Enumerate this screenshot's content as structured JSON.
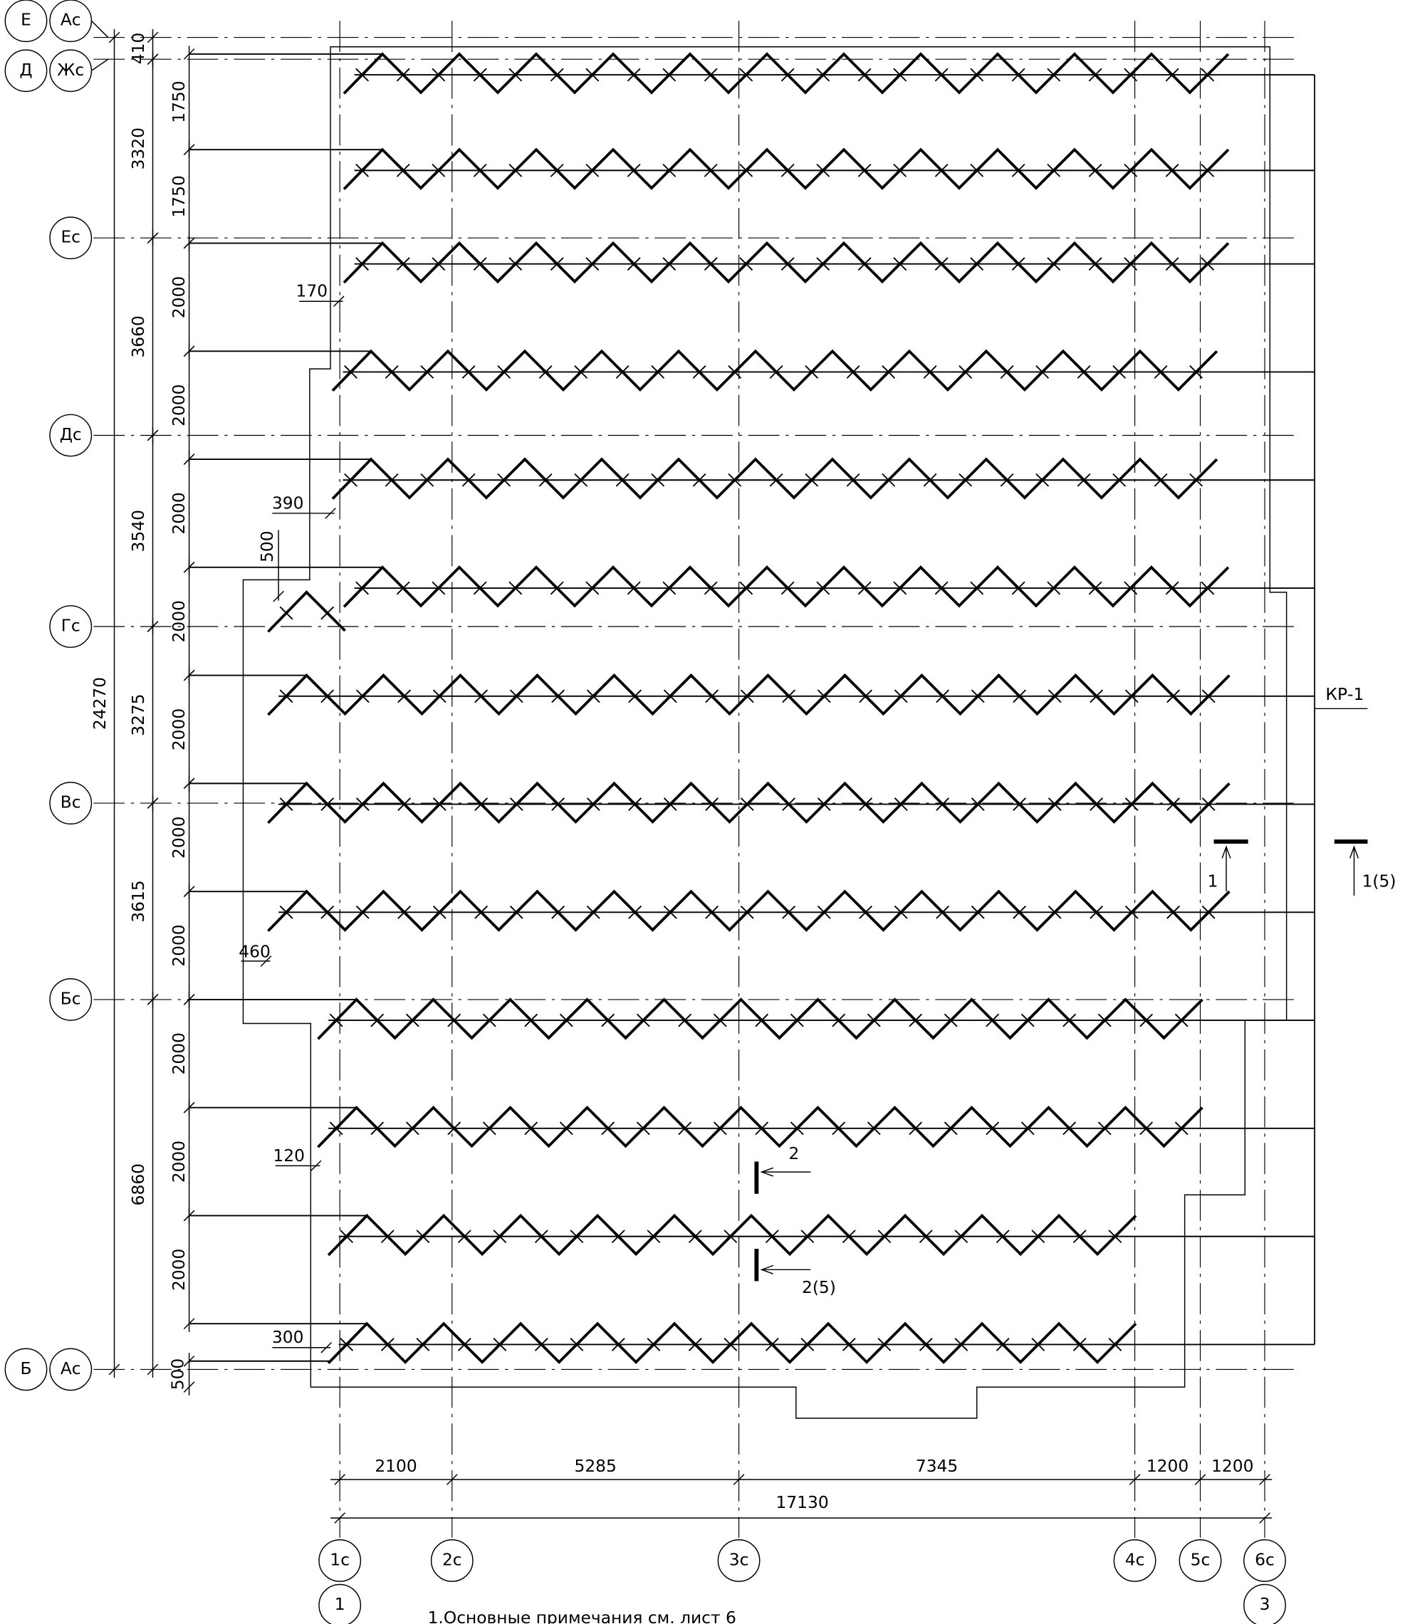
{
  "row_axes": [
    "Е",
    "Ас",
    "Д",
    "Жс",
    "Ес",
    "Дс",
    "Гс",
    "Вс",
    "Бс",
    "Б",
    "Ас"
  ],
  "column_axes": [
    "1с",
    "2с",
    "3с",
    "4с",
    "5с",
    "6с",
    "1",
    "3"
  ],
  "dimensions": {
    "overall_vertical": "24270",
    "axis_spacing": [
      "410",
      "3320",
      "3660",
      "3540",
      "3275",
      "3615",
      "6860"
    ],
    "row_spacing": [
      "1750",
      "1750",
      "2000",
      "2000",
      "2000",
      "2000",
      "2000",
      "2000",
      "2000",
      "2000",
      "2000",
      "2000",
      "500"
    ],
    "column_spacing": [
      "2100",
      "5285",
      "7345",
      "1200",
      "1200"
    ],
    "overall_horizontal": "17130",
    "offsets": [
      "170",
      "390",
      "500",
      "460",
      "120",
      "300"
    ]
  },
  "labels": {
    "kp": "КР-1",
    "section_1": "1",
    "section_1_ref": "1(5)",
    "section_2": "2",
    "section_2_ref": "2(5)"
  },
  "note": "1.Основные примечания см. лист 6"
}
